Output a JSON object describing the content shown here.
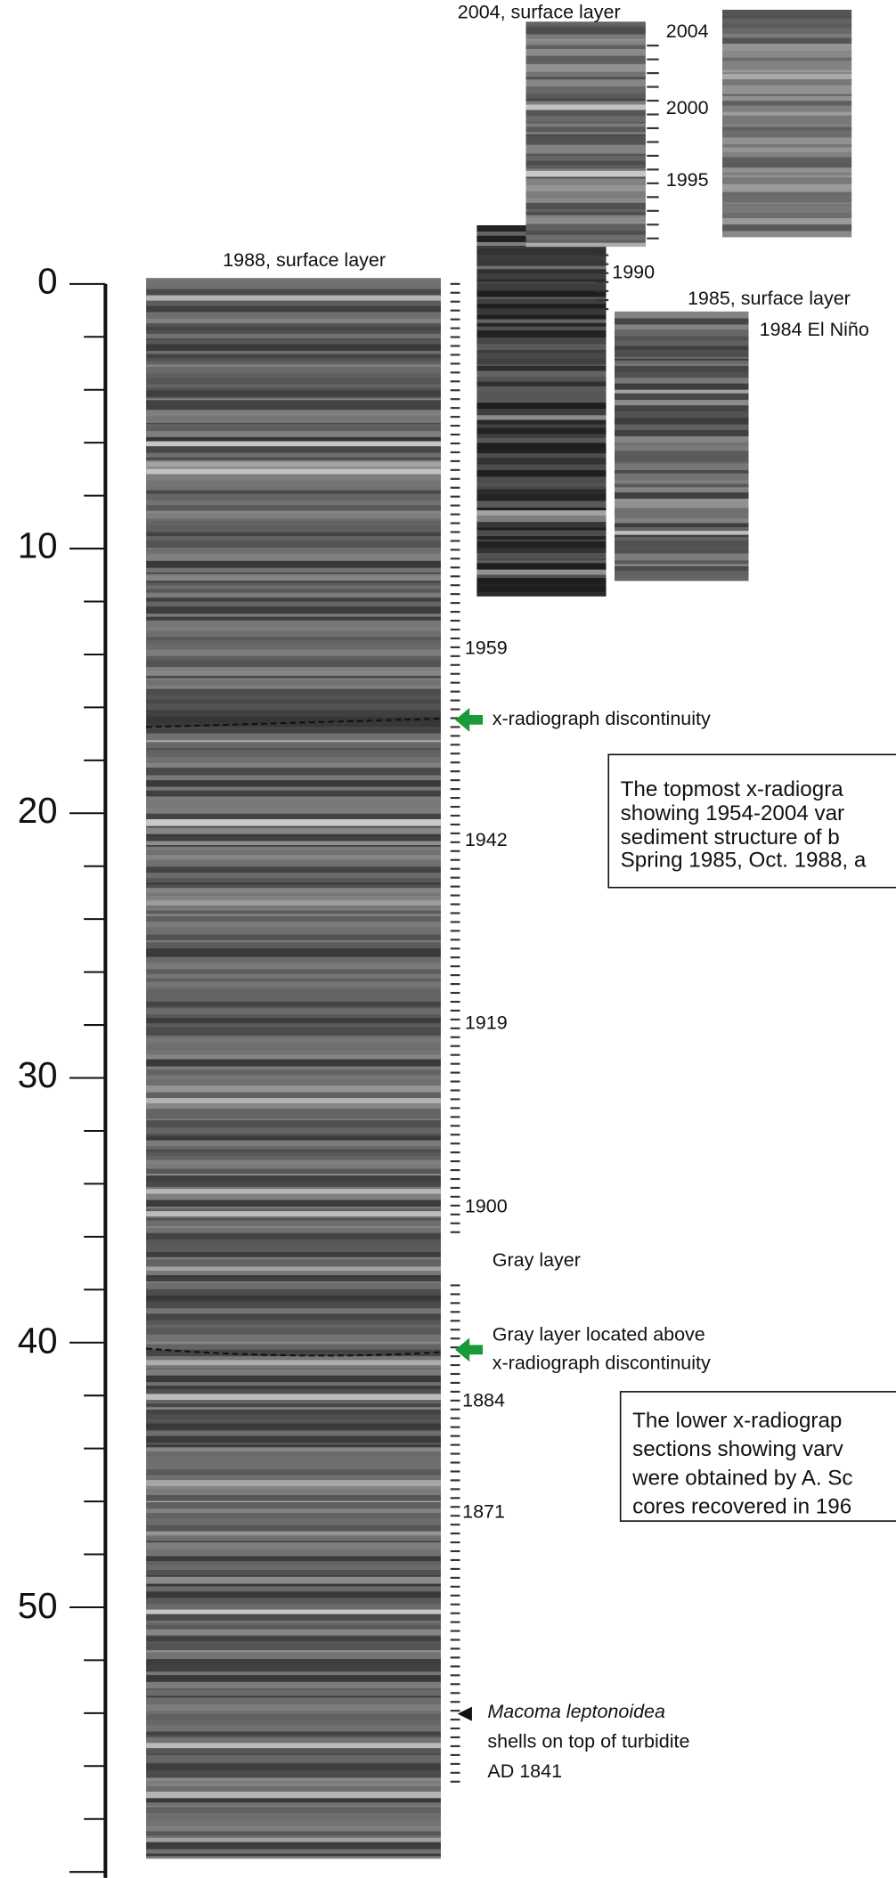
{
  "depth_axis": {
    "labels": [
      "0",
      "10",
      "20",
      "30",
      "40",
      "50"
    ]
  },
  "photos": {
    "core_2004": "2004, surface layer",
    "core_1988": "1988, surface layer",
    "core_1985": "1985, surface layer",
    "el_nino": "1984 El Niño"
  },
  "year_labels": {
    "top": [
      "2004",
      "2000",
      "1995"
    ],
    "mid": "1990",
    "main": [
      "1959",
      "1942",
      "1919",
      "1900",
      "1884",
      "1871"
    ]
  },
  "annotations": {
    "discontinuity": "x-radiograph discontinuity",
    "gray_layer": "Gray layer",
    "gray_layer_above": [
      "Gray layer located above",
      "x-radiograph discontinuity"
    ],
    "macoma": {
      "species": "Macoma leptonoidea",
      "lines": [
        "shells on top of turbidite",
        "AD 1841"
      ]
    }
  },
  "boxes": {
    "upper": [
      "The topmost x-radiogra",
      "showing 1954-2004 var",
      "sediment structure of b",
      "Spring 1985, Oct. 1988, a"
    ],
    "lower": [
      "The lower x-radiograp",
      "sections showing varv",
      "were obtained by A. Sc",
      "cores recovered in 196"
    ]
  }
}
